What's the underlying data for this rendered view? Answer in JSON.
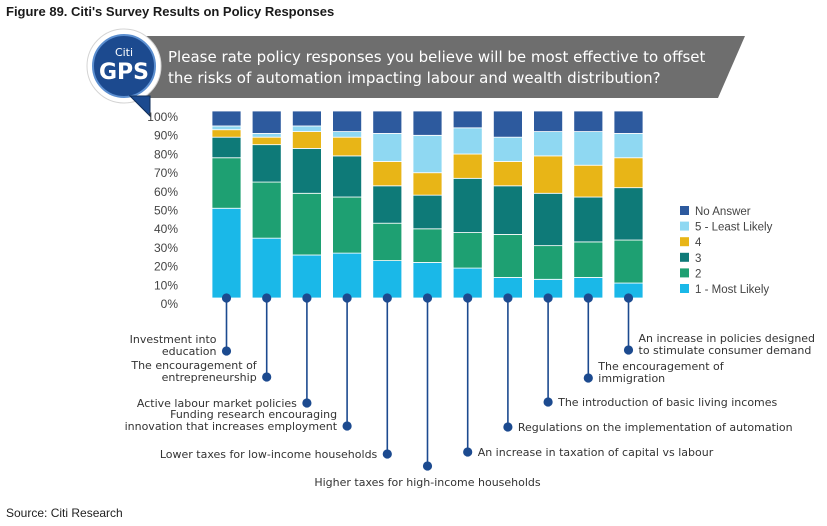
{
  "figure_title": "Figure 89. Citi's Survey Results on Policy Responses",
  "source": "Source: Citi Research",
  "badge": {
    "top": "Citi",
    "main": "GPS"
  },
  "colors": {
    "No Answer": "#2d5a9e",
    "5 - Least Likely": "#8fd8f2",
    "4": "#e8b517",
    "3": "#0e7a78",
    "2": "#1ea072",
    "1 - Most Likely": "#1ab8e8",
    "banner": "#6e6e6e",
    "badge_blue": "#1c4a8f",
    "connector": "#1c4a8f"
  },
  "chart_data": {
    "type": "bar",
    "stacked": true,
    "title": "Please rate policy responses you believe will be most effective to offset the risks of automation impacting labour and wealth distribution?",
    "title_lines": [
      "Please rate policy responses you believe will be most effective to offset",
      "the risks of automation impacting labour and wealth distribution?"
    ],
    "categories": [
      "Investment into education",
      "The encouragement of entrepreneurship",
      "Active labour market policies",
      "Funding research encouraging innovation that increases employment",
      "Lower taxes for low-income households",
      "Higher taxes for high-income households",
      "An increase in taxation of capital vs labour",
      "Regulations on the implementation of automation",
      "The introduction of basic living incomes",
      "The encouragement of immigration",
      "An increase in policies designed to stimulate consumer demand"
    ],
    "category_label_lines": [
      [
        "Investment into",
        "education"
      ],
      [
        "The encouragement of",
        "entrepreneurship"
      ],
      [
        "Active labour market policies"
      ],
      [
        "Funding research encouraging",
        "innovation that increases employment"
      ],
      [
        "Lower taxes for low-income households"
      ],
      [
        "Higher taxes for high-income households"
      ],
      [
        "An increase in taxation of capital vs labour"
      ],
      [
        "Regulations on the implementation of automation"
      ],
      [
        "The introduction of basic living incomes"
      ],
      [
        "The encouragement of",
        "immigration"
      ],
      [
        "An increase in policies designed",
        "to stimulate consumer demand"
      ]
    ],
    "series": [
      {
        "name": "1 - Most Likely",
        "values": [
          48,
          32,
          23,
          24,
          20,
          19,
          16,
          11,
          10,
          11,
          8
        ]
      },
      {
        "name": "2",
        "values": [
          27,
          30,
          33,
          30,
          20,
          18,
          19,
          23,
          18,
          19,
          23
        ]
      },
      {
        "name": "3",
        "values": [
          11,
          20,
          24,
          22,
          20,
          18,
          29,
          26,
          28,
          24,
          28
        ]
      },
      {
        "name": "4",
        "values": [
          4,
          4,
          9,
          10,
          13,
          12,
          13,
          13,
          20,
          17,
          16
        ]
      },
      {
        "name": "5 - Least Likely",
        "values": [
          2,
          2,
          3,
          3,
          15,
          20,
          14,
          13,
          13,
          18,
          13
        ]
      },
      {
        "name": "No Answer",
        "values": [
          8,
          12,
          8,
          11,
          12,
          13,
          9,
          14,
          11,
          11,
          12
        ]
      }
    ],
    "legend_order": [
      "No Answer",
      "5 - Least Likely",
      "4",
      "3",
      "2",
      "1 - Most Likely"
    ],
    "yticks": [
      "100%",
      "90%",
      "80%",
      "70%",
      "60%",
      "50%",
      "40%",
      "30%",
      "20%",
      "10%",
      "0%"
    ],
    "ylim": [
      0,
      100
    ],
    "legend_position": "right",
    "grid": false
  }
}
